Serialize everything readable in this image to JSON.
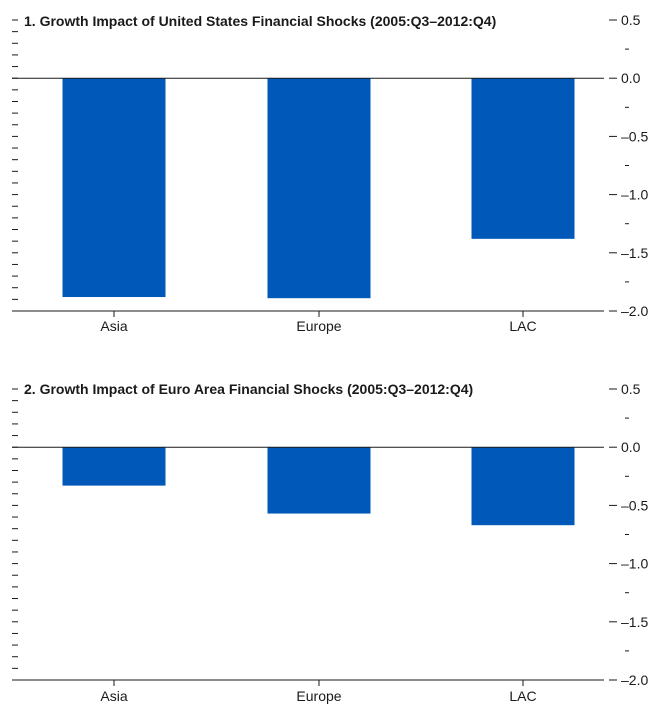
{
  "colors": {
    "bar": "#0058b8",
    "axis": "#1a1a1a",
    "background": "#ffffff"
  },
  "chart_data": [
    {
      "type": "bar",
      "title": "1. Growth Impact of United States Financial Shocks (2005:Q3–2012:Q4)",
      "categories": [
        "Asia",
        "Europe",
        "LAC"
      ],
      "values": [
        -1.88,
        -1.89,
        -1.38
      ],
      "ylim": [
        -2.0,
        0.5
      ],
      "yticks": [
        0.5,
        0.0,
        -0.5,
        -1.0,
        -1.5,
        -2.0
      ],
      "ytick_labels": [
        "0.5",
        "0.0",
        "–0.5",
        "–1.0",
        "–1.5",
        "–2.0"
      ],
      "xlabel": "",
      "ylabel": "",
      "grid": false,
      "legend": "none"
    },
    {
      "type": "bar",
      "title": "2. Growth Impact of Euro Area Financial Shocks (2005:Q3–2012:Q4)",
      "categories": [
        "Asia",
        "Europe",
        "LAC"
      ],
      "values": [
        -0.33,
        -0.57,
        -0.67
      ],
      "ylim": [
        -2.0,
        0.5
      ],
      "yticks": [
        0.5,
        0.0,
        -0.5,
        -1.0,
        -1.5,
        -2.0
      ],
      "ytick_labels": [
        "0.5",
        "0.0",
        "–0.5",
        "–1.0",
        "–1.5",
        "–2.0"
      ],
      "xlabel": "",
      "ylabel": "",
      "grid": false,
      "legend": "none"
    }
  ]
}
